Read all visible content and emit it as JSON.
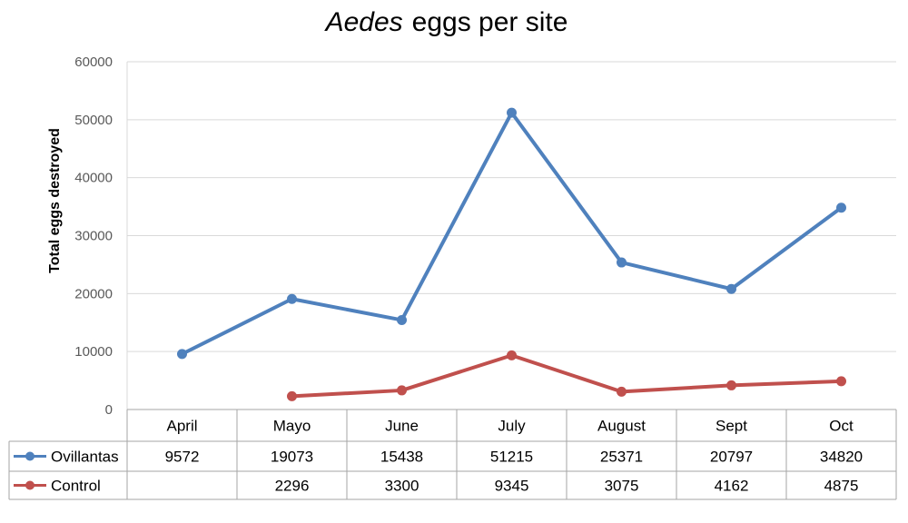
{
  "chart_data": {
    "type": "line",
    "title": "eggs per site",
    "title_italic_prefix": "Aedes",
    "ylabel": "Total eggs destroyed",
    "xlabel": "",
    "ylim": [
      0,
      60000
    ],
    "yticks": [
      0,
      10000,
      20000,
      30000,
      40000,
      50000,
      60000
    ],
    "grid": true,
    "legend": "data-table",
    "categories": [
      "April",
      "Mayo",
      "June",
      "July",
      "August",
      "Sept",
      "Oct"
    ],
    "series": [
      {
        "name": "Ovillantas",
        "color": "#4f81bd",
        "values": [
          9572,
          19073,
          15438,
          51215,
          25371,
          20797,
          34820
        ]
      },
      {
        "name": "Control",
        "color": "#c0504d",
        "values": [
          null,
          2296,
          3300,
          9345,
          3075,
          4162,
          4875
        ]
      }
    ]
  }
}
